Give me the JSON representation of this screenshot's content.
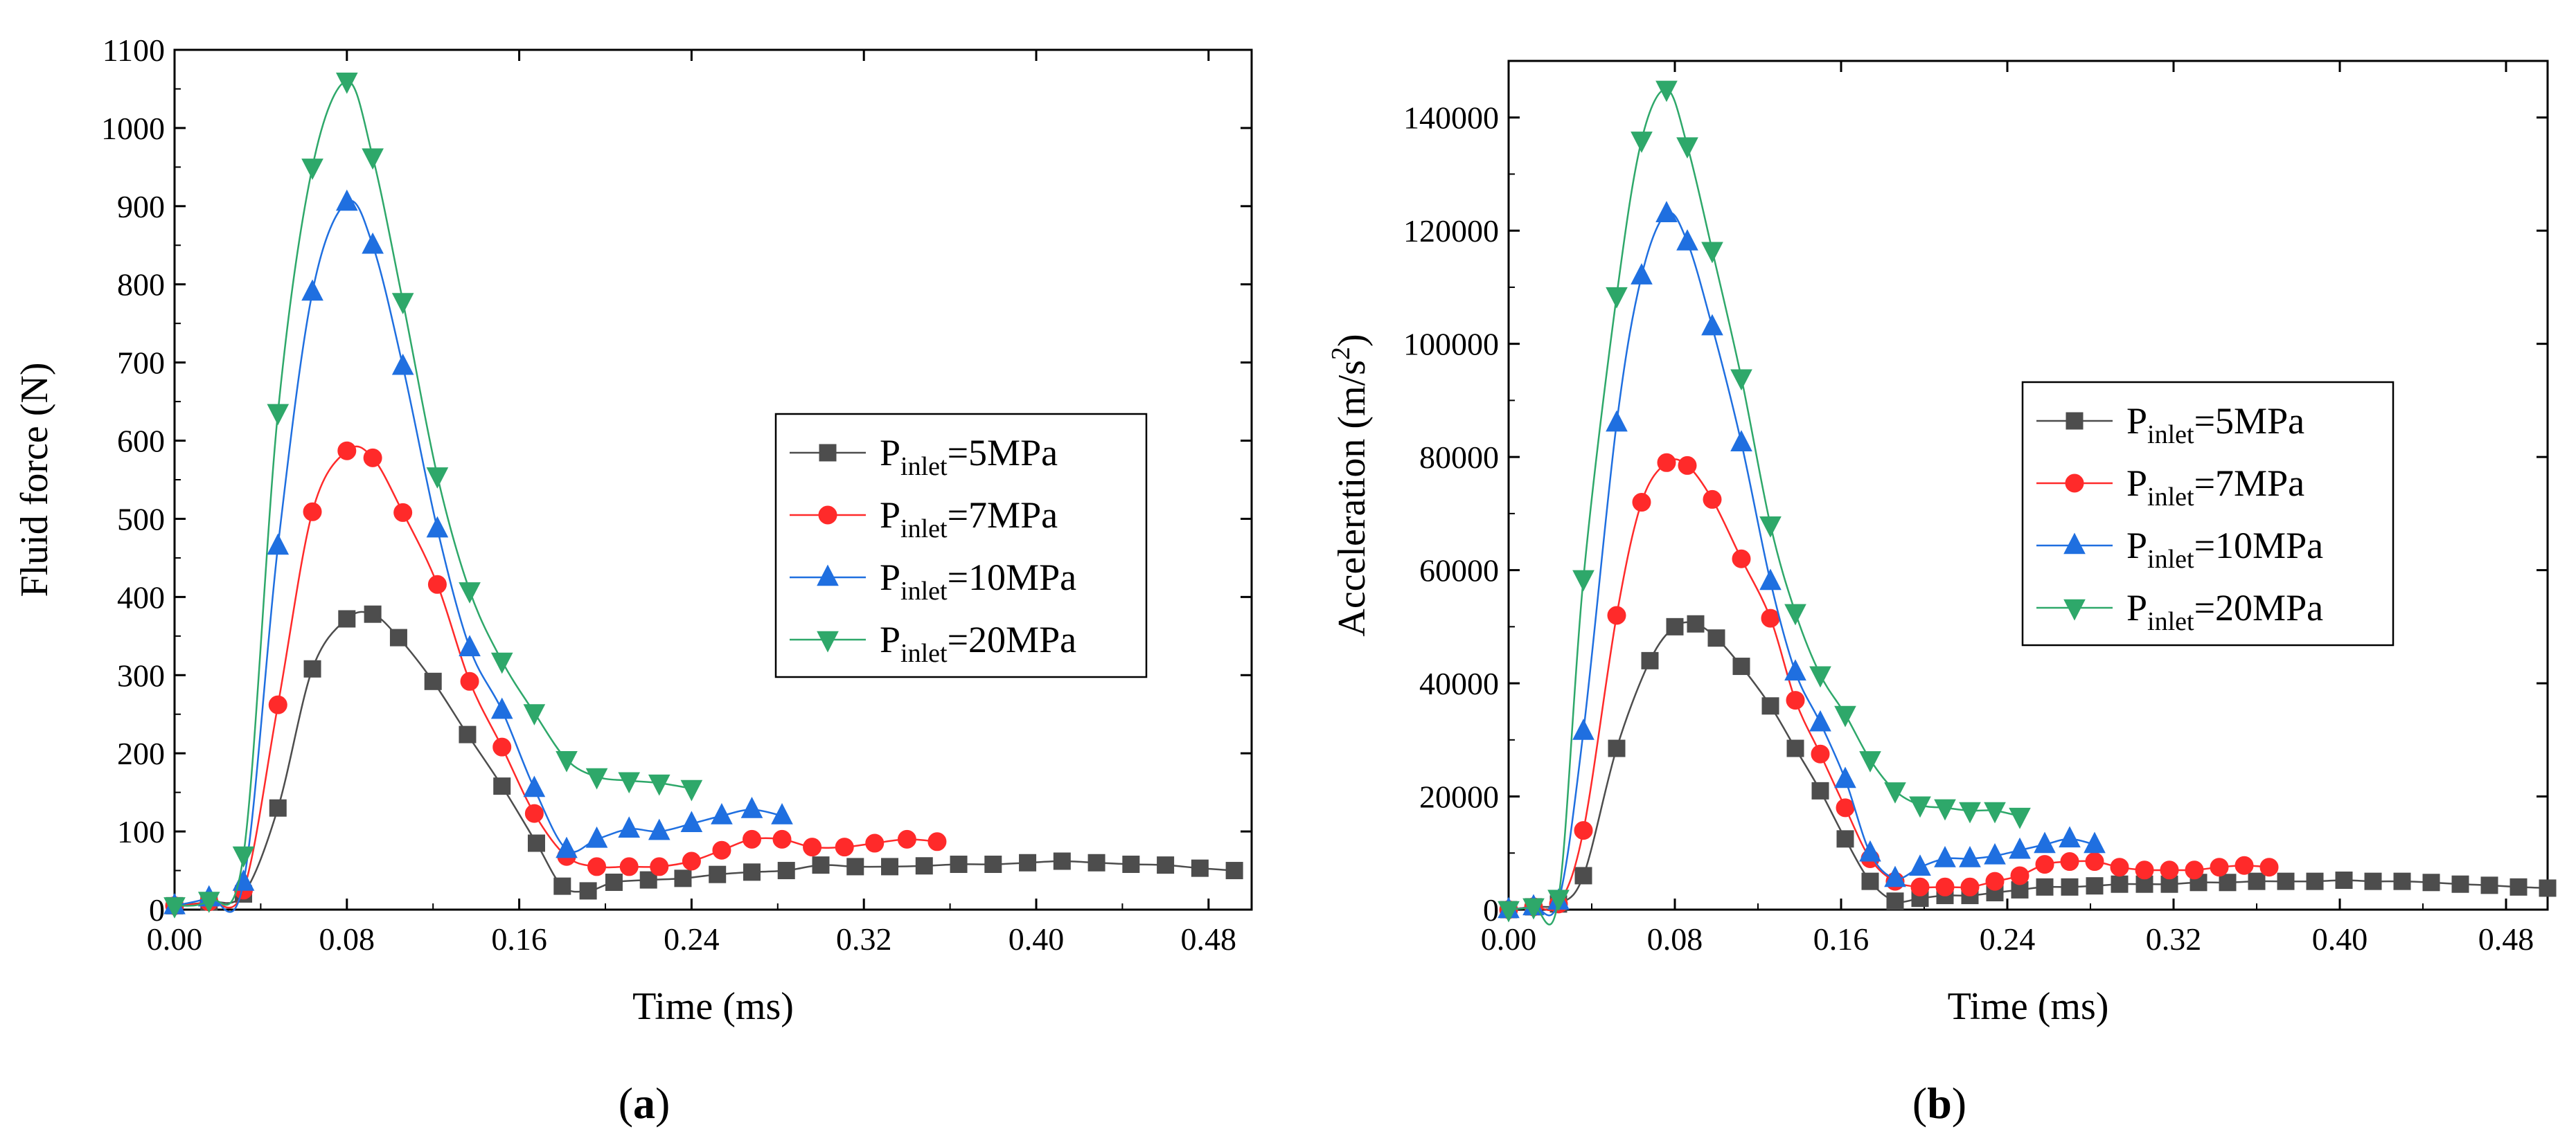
{
  "chart_data": [
    {
      "type": "line",
      "panel_label": "a",
      "xlabel": "Time (ms)",
      "ylabel": "Fluid force (N)",
      "xlim": [
        0,
        0.5
      ],
      "ylim": [
        0,
        1100
      ],
      "x_ticks": [
        "0.00",
        "0.08",
        "0.16",
        "0.24",
        "0.32",
        "0.40",
        "0.48"
      ],
      "y_ticks": [
        "0",
        "100",
        "200",
        "300",
        "400",
        "500",
        "600",
        "700",
        "800",
        "900",
        "1000",
        "1100"
      ],
      "legend_position": "center-right",
      "series": [
        {
          "name": "P_inlet=5MPa",
          "label_main": "P",
          "label_sub": "inlet",
          "label_rest": "=5MPa",
          "color": "#4d4d4d",
          "marker": "square",
          "x": [
            0.0,
            0.016,
            0.032,
            0.048,
            0.064,
            0.08,
            0.092,
            0.104,
            0.12,
            0.136,
            0.152,
            0.168,
            0.18,
            0.192,
            0.204,
            0.22,
            0.236,
            0.252,
            0.268,
            0.284,
            0.3,
            0.316,
            0.332,
            0.348,
            0.364,
            0.38,
            0.396,
            0.412,
            0.428,
            0.444,
            0.46,
            0.476,
            0.492
          ],
          "y": [
            5,
            10,
            20,
            130,
            308,
            372,
            378,
            348,
            292,
            224,
            158,
            85,
            30,
            24,
            35,
            38,
            40,
            45,
            48,
            50,
            57,
            55,
            55,
            56,
            58,
            58,
            60,
            62,
            60,
            58,
            57,
            53,
            50
          ]
        },
        {
          "name": "P_inlet=7MPa",
          "label_main": "P",
          "label_sub": "inlet",
          "label_rest": "=7MPa",
          "color": "#ff2a2a",
          "marker": "circle",
          "x": [
            0.0,
            0.016,
            0.032,
            0.048,
            0.064,
            0.08,
            0.092,
            0.106,
            0.122,
            0.137,
            0.152,
            0.167,
            0.182,
            0.196,
            0.211,
            0.225,
            0.24,
            0.254,
            0.268,
            0.282,
            0.296,
            0.311,
            0.325,
            0.34,
            0.354
          ],
          "y": [
            5,
            10,
            25,
            262,
            509,
            587,
            578,
            508,
            416,
            292,
            208,
            123,
            68,
            55,
            55,
            55,
            62,
            76,
            90,
            90,
            80,
            80,
            85,
            90,
            87
          ]
        },
        {
          "name": "P_inlet=10MPa",
          "label_main": "P",
          "label_sub": "inlet",
          "label_rest": "=10MPa",
          "color": "#1f6fe0",
          "marker": "triangle-up",
          "x": [
            0.0,
            0.016,
            0.032,
            0.048,
            0.064,
            0.08,
            0.092,
            0.106,
            0.122,
            0.137,
            0.152,
            0.167,
            0.182,
            0.196,
            0.211,
            0.225,
            0.24,
            0.254,
            0.268,
            0.282
          ],
          "y": [
            5,
            15,
            35,
            465,
            790,
            905,
            850,
            695,
            487,
            335,
            255,
            155,
            77,
            90,
            103,
            100,
            110,
            120,
            128,
            120
          ]
        },
        {
          "name": "P_inlet=20MPa",
          "label_main": "P",
          "label_sub": "inlet",
          "label_rest": "=20MPa",
          "color": "#2ea86a",
          "marker": "triangle-down",
          "x": [
            0.0,
            0.016,
            0.032,
            0.048,
            0.064,
            0.08,
            0.092,
            0.106,
            0.122,
            0.137,
            0.152,
            0.167,
            0.182,
            0.196,
            0.211,
            0.225,
            0.24
          ],
          "y": [
            5,
            12,
            70,
            636,
            950,
            1060,
            963,
            778,
            555,
            408,
            318,
            252,
            192,
            170,
            165,
            162,
            155
          ]
        }
      ]
    },
    {
      "type": "line",
      "panel_label": "b",
      "xlabel": "Time (ms)",
      "ylabel_main": "Acceleration (m/s",
      "ylabel_sup": "2",
      "ylabel_end": ")",
      "xlim": [
        0,
        0.5
      ],
      "ylim": [
        0,
        150000
      ],
      "x_ticks": [
        "0.00",
        "0.08",
        "0.16",
        "0.24",
        "0.32",
        "0.40",
        "0.48"
      ],
      "y_ticks": [
        "0",
        "20000",
        "40000",
        "60000",
        "80000",
        "100000",
        "120000",
        "140000"
      ],
      "legend_position": "center-right",
      "series": [
        {
          "name": "P_inlet=5MPa",
          "label_main": "P",
          "label_sub": "inlet",
          "label_rest": "=5MPa",
          "color": "#4d4d4d",
          "marker": "square",
          "x": [
            0.0,
            0.012,
            0.024,
            0.036,
            0.052,
            0.068,
            0.08,
            0.09,
            0.1,
            0.112,
            0.126,
            0.138,
            0.15,
            0.162,
            0.174,
            0.186,
            0.198,
            0.21,
            0.222,
            0.234,
            0.246,
            0.258,
            0.27,
            0.282,
            0.294,
            0.306,
            0.318,
            0.332,
            0.346,
            0.36,
            0.374,
            0.388,
            0.402,
            0.416,
            0.43,
            0.444,
            0.458,
            0.472,
            0.486,
            0.5
          ],
          "y": [
            0,
            500,
            1000,
            6000,
            28500,
            44000,
            50000,
            50500,
            48000,
            43000,
            36000,
            28500,
            21000,
            12500,
            5000,
            1500,
            2000,
            2500,
            2500,
            3000,
            3500,
            4000,
            4000,
            4200,
            4500,
            4500,
            4500,
            4800,
            4800,
            5000,
            5000,
            5000,
            5200,
            5000,
            5000,
            4800,
            4500,
            4300,
            4000,
            3800
          ]
        },
        {
          "name": "P_inlet=7MPa",
          "label_main": "P",
          "label_sub": "inlet",
          "label_rest": "=7MPa",
          "color": "#ff2a2a",
          "marker": "circle",
          "x": [
            0.0,
            0.012,
            0.024,
            0.036,
            0.052,
            0.064,
            0.076,
            0.086,
            0.098,
            0.112,
            0.126,
            0.138,
            0.15,
            0.162,
            0.174,
            0.186,
            0.198,
            0.21,
            0.222,
            0.234,
            0.246,
            0.258,
            0.27,
            0.282,
            0.294,
            0.306,
            0.318,
            0.33,
            0.342,
            0.354,
            0.366
          ],
          "y": [
            0,
            500,
            1000,
            14000,
            52000,
            72000,
            79000,
            78500,
            72500,
            62000,
            51500,
            37000,
            27500,
            18000,
            9000,
            5000,
            4000,
            4000,
            4000,
            5000,
            6000,
            8000,
            8500,
            8500,
            7500,
            7000,
            7000,
            7000,
            7500,
            7800,
            7500
          ]
        },
        {
          "name": "P_inlet=10MPa",
          "label_main": "P",
          "label_sub": "inlet",
          "label_rest": "=10MPa",
          "color": "#1f6fe0",
          "marker": "triangle-up",
          "x": [
            0.0,
            0.012,
            0.024,
            0.036,
            0.052,
            0.064,
            0.076,
            0.086,
            0.098,
            0.112,
            0.126,
            0.138,
            0.15,
            0.162,
            0.174,
            0.186,
            0.198,
            0.21,
            0.222,
            0.234,
            0.246,
            0.258,
            0.27,
            0.282
          ],
          "y": [
            0,
            500,
            1500,
            31500,
            86000,
            112000,
            123000,
            118000,
            103000,
            82500,
            58000,
            42000,
            33000,
            23000,
            10000,
            5500,
            7500,
            9000,
            9000,
            9500,
            10500,
            11500,
            12500,
            11500
          ]
        },
        {
          "name": "P_inlet=20MPa",
          "label_main": "P",
          "label_sub": "inlet",
          "label_rest": "=20MPa",
          "color": "#2ea86a",
          "marker": "triangle-down",
          "x": [
            0.0,
            0.012,
            0.024,
            0.036,
            0.052,
            0.064,
            0.076,
            0.086,
            0.098,
            0.112,
            0.126,
            0.138,
            0.15,
            0.162,
            0.174,
            0.186,
            0.198,
            0.21,
            0.222,
            0.234,
            0.246
          ],
          "y": [
            0,
            500,
            2000,
            58500,
            108500,
            136000,
            145000,
            135000,
            116500,
            94000,
            68000,
            52500,
            41500,
            34500,
            26500,
            21000,
            18500,
            18000,
            17500,
            17500,
            16500
          ]
        }
      ]
    }
  ]
}
